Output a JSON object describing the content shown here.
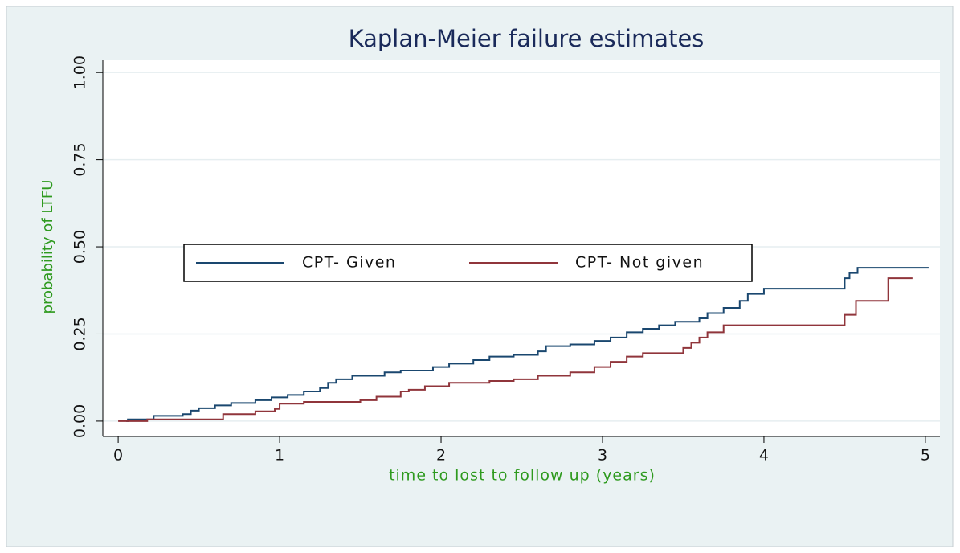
{
  "chart_data": {
    "type": "line",
    "step": true,
    "title": "Kaplan-Meier failure estimates",
    "x_label": "time to lost to follow up (years)",
    "y_label": "probability of LTFU",
    "xlim": [
      -0.095,
      5.09
    ],
    "ylim": [
      -0.044,
      1.035
    ],
    "xticks": [
      0,
      1,
      2,
      3,
      4,
      5
    ],
    "yticks": [
      {
        "value": 0,
        "label": "0.00"
      },
      {
        "value": 0.25,
        "label": "0.25"
      },
      {
        "value": 0.5,
        "label": "0.50"
      },
      {
        "value": 0.75,
        "label": "0.75"
      },
      {
        "value": 1,
        "label": "1.00"
      }
    ],
    "grid": true,
    "legend": "center",
    "series": [
      {
        "name": "CPT- Given",
        "color": "#1a476f",
        "x": [
          0.05,
          0.06,
          0.22,
          0.4,
          0.45,
          0.5,
          0.6,
          0.7,
          0.85,
          0.95,
          1.05,
          1.15,
          1.25,
          1.3,
          1.35,
          1.45,
          1.65,
          1.75,
          1.95,
          2.05,
          2.2,
          2.3,
          2.45,
          2.6,
          2.65,
          2.8,
          2.95,
          3.05,
          3.15,
          3.25,
          3.35,
          3.45,
          3.6,
          3.65,
          3.75,
          3.85,
          3.9,
          4.0,
          4.5,
          4.53,
          4.58,
          5.02
        ],
        "values": [
          0,
          0.005,
          0.015,
          0.02,
          0.03,
          0.037,
          0.045,
          0.052,
          0.06,
          0.068,
          0.075,
          0.085,
          0.095,
          0.11,
          0.12,
          0.13,
          0.14,
          0.145,
          0.155,
          0.165,
          0.175,
          0.185,
          0.19,
          0.2,
          0.215,
          0.22,
          0.23,
          0.24,
          0.255,
          0.265,
          0.275,
          0.285,
          0.295,
          0.31,
          0.325,
          0.345,
          0.365,
          0.38,
          0.41,
          0.425,
          0.44,
          0.44
        ]
      },
      {
        "name": "CPT- Not given",
        "color": "#90353b",
        "x": [
          0,
          0.18,
          0.65,
          0.85,
          0.97,
          1.0,
          1.15,
          1.5,
          1.6,
          1.75,
          1.8,
          1.9,
          2.05,
          2.3,
          2.45,
          2.6,
          2.8,
          2.95,
          3.05,
          3.15,
          3.25,
          3.5,
          3.55,
          3.6,
          3.65,
          3.75,
          4.5,
          4.57,
          4.77,
          4.92
        ],
        "values": [
          0,
          0.005,
          0.02,
          0.028,
          0.035,
          0.05,
          0.055,
          0.06,
          0.07,
          0.085,
          0.09,
          0.1,
          0.11,
          0.115,
          0.12,
          0.13,
          0.14,
          0.155,
          0.17,
          0.185,
          0.195,
          0.21,
          0.225,
          0.24,
          0.255,
          0.275,
          0.305,
          0.345,
          0.41,
          0.41
        ]
      }
    ]
  }
}
